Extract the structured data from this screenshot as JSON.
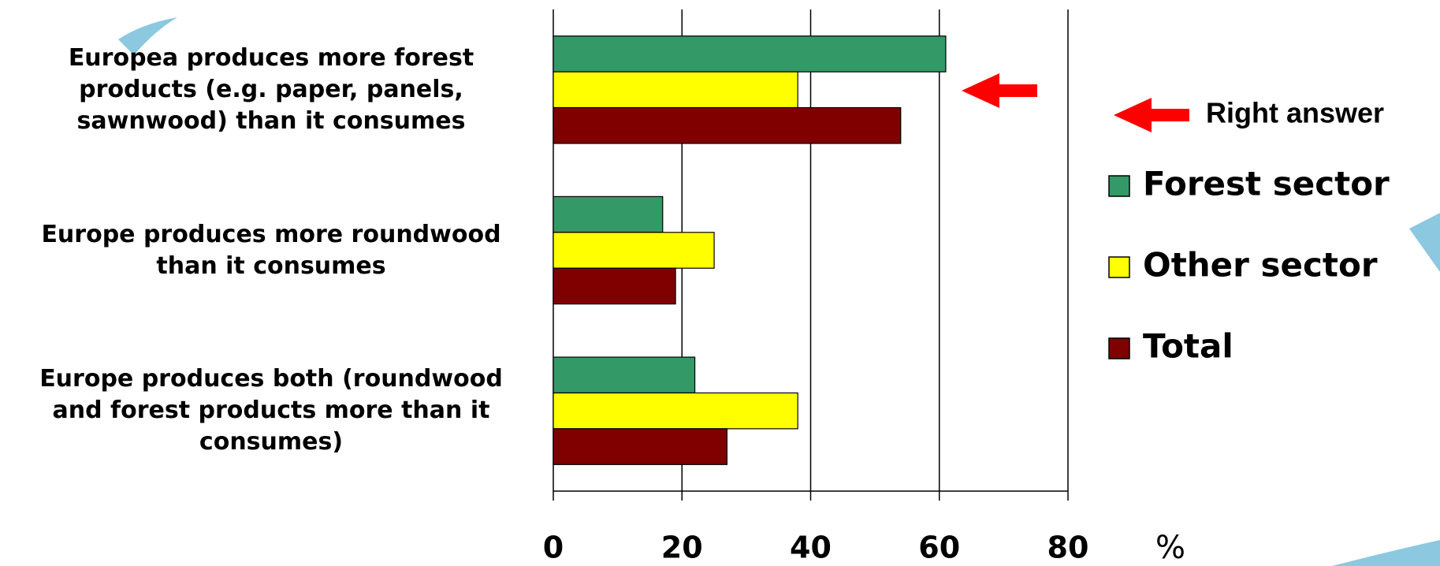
{
  "chart_data": {
    "type": "hbar",
    "categories": [
      "Europea produces more forest products (e.g. paper, panels, sawnwood) than it consumes",
      "Europe produces more roundwood than it consumes",
      "Europe produces both (roundwood and forest products more than it consumes)"
    ],
    "series": [
      {
        "name": "Forest sector",
        "color": "#339966",
        "values": [
          61,
          17,
          22
        ]
      },
      {
        "name": "Other sector",
        "color": "#ffff00",
        "values": [
          38,
          25,
          38
        ]
      },
      {
        "name": "Total",
        "color": "#800000",
        "values": [
          54,
          19,
          27
        ]
      }
    ],
    "xlim": [
      0,
      80
    ],
    "xticks": [
      0,
      20,
      40,
      60,
      80
    ],
    "grid": true,
    "x_unit": "%",
    "annotation": "Right answer",
    "legend": "right"
  }
}
